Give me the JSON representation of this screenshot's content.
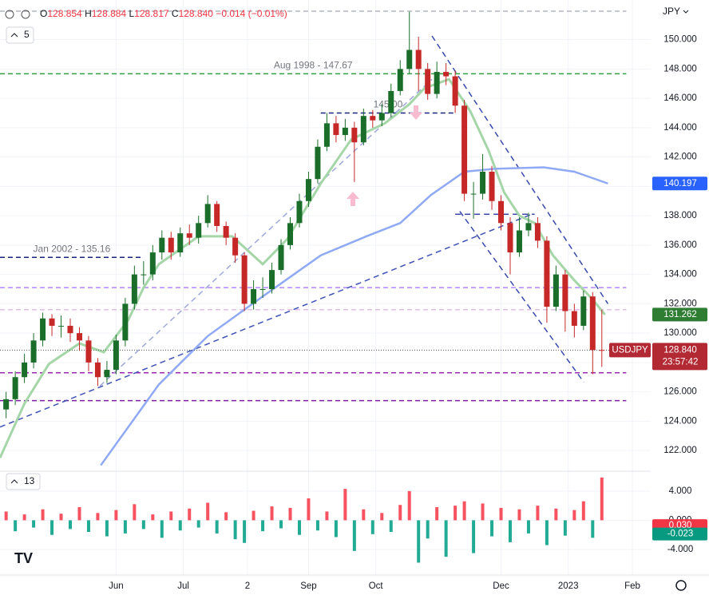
{
  "chart_data": {
    "type": "candlestick",
    "header": {
      "o": "O",
      "open": "128.854",
      "h": "H",
      "high": "128.884",
      "l": "L",
      "low": "128.817",
      "c": "C",
      "close": "128.840",
      "change": "−0.014 (−0.01%)"
    },
    "currency": "JPY",
    "indicator_count": "5",
    "oscillator_param": "13",
    "xlim": [
      0,
      213
    ],
    "ylim": [
      120.7,
      152.7
    ],
    "grid": true,
    "xticks": [
      {
        "value": 38,
        "label": "Jun"
      },
      {
        "value": 60,
        "label": "Jul"
      },
      {
        "value": 81,
        "label": "2"
      },
      {
        "value": 101,
        "label": "Sep"
      },
      {
        "value": 123,
        "label": "Oct"
      },
      {
        "value": 164,
        "label": "Dec"
      },
      {
        "value": 186,
        "label": "2023"
      },
      {
        "value": 207,
        "label": "Feb"
      }
    ],
    "yticks": [
      {
        "value": 122,
        "label": "122.000"
      },
      {
        "value": 124,
        "label": "124.000"
      },
      {
        "value": 126,
        "label": "126.000"
      },
      {
        "value": 128,
        "label": "128.000"
      },
      {
        "value": 130,
        "label": "130.000"
      },
      {
        "value": 132,
        "label": "132.000"
      },
      {
        "value": 134,
        "label": "134.000"
      },
      {
        "value": 136,
        "label": "136.000"
      },
      {
        "value": 138,
        "label": "138.000"
      },
      {
        "value": 140,
        "label": "140.000"
      },
      {
        "value": 142,
        "label": "142.000"
      },
      {
        "value": 144,
        "label": "144.000"
      },
      {
        "value": 146,
        "label": "146.000"
      },
      {
        "value": 148,
        "label": "148.000"
      },
      {
        "value": 150,
        "label": "150.000"
      }
    ],
    "up_color": "#1b6e2a",
    "down_color": "#c62828",
    "candles": {
      "x": [
        2,
        5,
        8,
        11,
        14,
        17,
        20,
        23,
        26,
        29,
        32,
        35,
        38,
        41,
        44,
        47,
        50,
        53,
        56,
        59,
        62,
        65,
        68,
        71,
        74,
        77,
        80,
        83,
        86,
        89,
        92,
        95,
        98,
        101,
        104,
        107,
        110,
        113,
        116,
        119,
        122,
        125,
        128,
        131,
        134,
        137,
        140,
        143,
        146,
        149,
        152,
        155,
        158,
        161,
        164,
        167,
        170,
        173,
        176,
        179,
        182,
        185,
        188,
        191,
        194,
        197
      ],
      "open": [
        124.8,
        125.5,
        127,
        128,
        129.5,
        131,
        130.5,
        130.5,
        130,
        129.5,
        128,
        127,
        127.5,
        129.5,
        132,
        134,
        134,
        135.5,
        136.5,
        135.5,
        136.8,
        136.5,
        137.5,
        138.8,
        137.3,
        136.5,
        135.3,
        132,
        133,
        133,
        134.3,
        136,
        137.5,
        139,
        140.5,
        142.7,
        144.3,
        143.5,
        144,
        143,
        144.8,
        144.5,
        145,
        146.5,
        148,
        149.3,
        148,
        146.3,
        147.8,
        147.5,
        145.5,
        139.5,
        139.5,
        141,
        139,
        137.5,
        135.5,
        137,
        137.5,
        136.3,
        131.8,
        134,
        131.5,
        130.5,
        132.5,
        128.85
      ],
      "high": [
        126,
        127.4,
        128.6,
        130,
        131.4,
        131.3,
        131.2,
        131,
        130.4,
        129.8,
        128.3,
        128.1,
        129.9,
        132.4,
        134.6,
        134.9,
        136,
        137,
        136.9,
        137.2,
        137.4,
        138,
        139.4,
        139,
        137.6,
        136.8,
        135.5,
        133.6,
        133.8,
        134.8,
        136.4,
        137.9,
        139.5,
        141,
        143.2,
        145,
        144.8,
        144.6,
        144.4,
        145.3,
        145.2,
        145.6,
        147,
        148.6,
        151.9,
        150.2,
        148.4,
        148.5,
        148.4,
        147.9,
        145.9,
        140.3,
        142.2,
        141.4,
        139.4,
        137.9,
        137.9,
        138.2,
        137.9,
        136.6,
        134.6,
        134.3,
        132,
        132.9,
        132.8,
        131.6
      ],
      "low": [
        124.2,
        125.1,
        126.6,
        127.6,
        129.1,
        129.8,
        129.7,
        129.4,
        128.8,
        127.4,
        126.4,
        126.6,
        127.2,
        129.1,
        131.6,
        133.3,
        133.6,
        135,
        135,
        135.2,
        136,
        136.1,
        137.2,
        136.9,
        136,
        134.8,
        131.5,
        131.6,
        132.4,
        132.7,
        134,
        135.7,
        137.2,
        138.6,
        140.2,
        142.4,
        143,
        143.1,
        140.3,
        142.8,
        144,
        144.1,
        144.7,
        146.2,
        147.7,
        146.5,
        145.9,
        146,
        146.9,
        145,
        139,
        137.8,
        139.1,
        138.4,
        137,
        134,
        135.2,
        136.6,
        135.8,
        130.7,
        131.5,
        130.1,
        129.7,
        130.2,
        127.2,
        127.7
      ],
      "close": [
        125.5,
        127,
        128,
        129.5,
        131,
        130.5,
        130.5,
        130,
        129.5,
        128,
        127,
        127.5,
        129.5,
        132,
        134,
        134,
        135.5,
        136.5,
        135.5,
        136.8,
        136.5,
        137.5,
        138.8,
        137.3,
        136.5,
        135.3,
        132,
        133,
        133,
        134.3,
        136,
        137.5,
        139,
        140.5,
        142.7,
        144.3,
        143.5,
        144,
        143,
        144.8,
        144.5,
        145,
        146.5,
        148,
        149.3,
        148,
        146.3,
        147.8,
        147.5,
        145.5,
        139.5,
        139.5,
        141,
        139,
        137.5,
        135.5,
        137,
        137.5,
        136.3,
        131.8,
        134,
        131.5,
        130.5,
        132.5,
        128.85,
        128.84
      ]
    },
    "lines": [
      {
        "color": "#a5d6a7",
        "width": 3,
        "x": [
          0,
          8,
          16,
          26,
          34,
          42,
          47,
          52,
          65,
          76,
          86,
          94,
          105,
          115,
          126,
          134,
          139,
          147,
          154,
          160,
          165,
          170,
          175,
          181,
          188,
          194,
          198
        ],
        "values": [
          121.5,
          125.2,
          127.9,
          129.3,
          128.7,
          130.9,
          133.1,
          134.7,
          136.6,
          136.6,
          134.7,
          136.4,
          140.2,
          143.2,
          144.3,
          145.6,
          146.7,
          147.3,
          145.1,
          142.4,
          139.6,
          138,
          137.5,
          135.3,
          133.6,
          132.3,
          131.262
        ],
        "tag_color": "#2e7d32"
      },
      {
        "color": "#90a9f5",
        "width": 2.5,
        "x": [
          33,
          52,
          68,
          86,
          105,
          120,
          131,
          141,
          152,
          162,
          178,
          188,
          199
        ],
        "values": [
          121,
          126.5,
          129.8,
          132.5,
          135.3,
          136.6,
          137.5,
          139.4,
          141,
          141.2,
          141.3,
          141,
          140.197
        ],
        "tag_color": "#2962ff"
      }
    ],
    "levels": [
      {
        "value": 151.94,
        "color": "#b2b5be",
        "x": [
          0,
          205
        ]
      },
      {
        "value": 147.67,
        "color": "#2e9e3e",
        "x": [
          0,
          205
        ],
        "label": "Aug 1998 - 147.67"
      },
      {
        "value": 145,
        "color": "#1a237e",
        "x": [
          105,
          149
        ],
        "label": "145.00"
      },
      {
        "value": 135.16,
        "color": "#1a237e",
        "x": [
          0,
          47
        ],
        "label": "Jan 2002 - 135.16"
      },
      {
        "value": 133.1,
        "color": "#b388ff",
        "x": [
          0,
          205
        ]
      },
      {
        "value": 131.6,
        "color": "#e1bee7",
        "x": [
          0,
          205
        ]
      },
      {
        "value": 127.3,
        "color": "#9c27b0",
        "x": [
          0,
          205
        ]
      },
      {
        "value": 125.4,
        "color": "#7b1fa2",
        "x": [
          0,
          205
        ]
      }
    ],
    "trendlines": [
      {
        "x": [
          0,
          174
        ],
        "y": [
          123.6,
          138.1
        ],
        "color": "#3f51b5"
      },
      {
        "x": [
          32.7,
          141.4
        ],
        "y": [
          126.4,
          147.3
        ],
        "color": "#9fa8da"
      },
      {
        "x": [
          141.4,
          199
        ],
        "y": [
          150.25,
          132
        ],
        "color": "#3949ab"
      },
      {
        "x": [
          150.5,
          191.1
        ],
        "y": [
          138.3,
          126.66
        ],
        "color": "#3949ab"
      },
      {
        "x": [
          149,
          175
        ],
        "y": [
          138.1,
          138.1
        ],
        "color": "#3949ab"
      }
    ],
    "price_tag": {
      "symbol": "USDJPY",
      "price": {
        "value": 128.84,
        "label": "128.840"
      },
      "countdown": "23:57:42",
      "color": "#b22833"
    },
    "oscillator": {
      "ylim": [
        -7.5,
        6.5
      ],
      "yticks": [
        {
          "value": 4,
          "label": "4.000"
        },
        {
          "value": 0,
          "label": "0.000"
        },
        {
          "value": -4,
          "label": "-4.000"
        }
      ],
      "pos_color": "#f7525f",
      "neg_color": "#22ab94",
      "values": [
        1.2,
        -1.5,
        0.8,
        -1.0,
        1.5,
        -2.0,
        0.9,
        -1.2,
        1.8,
        -1.6,
        1.0,
        -2.2,
        1.4,
        -1.8,
        2.2,
        -1.2,
        0.8,
        -2.4,
        1.2,
        -1.4,
        1.6,
        -1.0,
        2.4,
        -1.8,
        1.1,
        -2.6,
        -3.1,
        1.3,
        -1.5,
        1.9,
        -1.1,
        1.7,
        -2.0,
        3.0,
        -1.4,
        1.2,
        -2.3,
        4.3,
        -4.2,
        1.5,
        -1.9,
        1.0,
        -1.6,
        2.1,
        4.0,
        -5.8,
        -2.5,
        1.8,
        -5.0,
        2.0,
        2.6,
        -4.5,
        2.3,
        -2.2,
        1.7,
        -3.0,
        1.5,
        -1.8,
        2.0,
        -3.4,
        1.6,
        -2.1,
        1.4,
        2.6,
        -2.4,
        5.86
      ],
      "markers": [
        {
          "value": 0.03,
          "label": "0.030",
          "color": "#f23645"
        },
        {
          "value": -0.023,
          "label": "-0.023",
          "color": "#089981"
        }
      ]
    }
  }
}
